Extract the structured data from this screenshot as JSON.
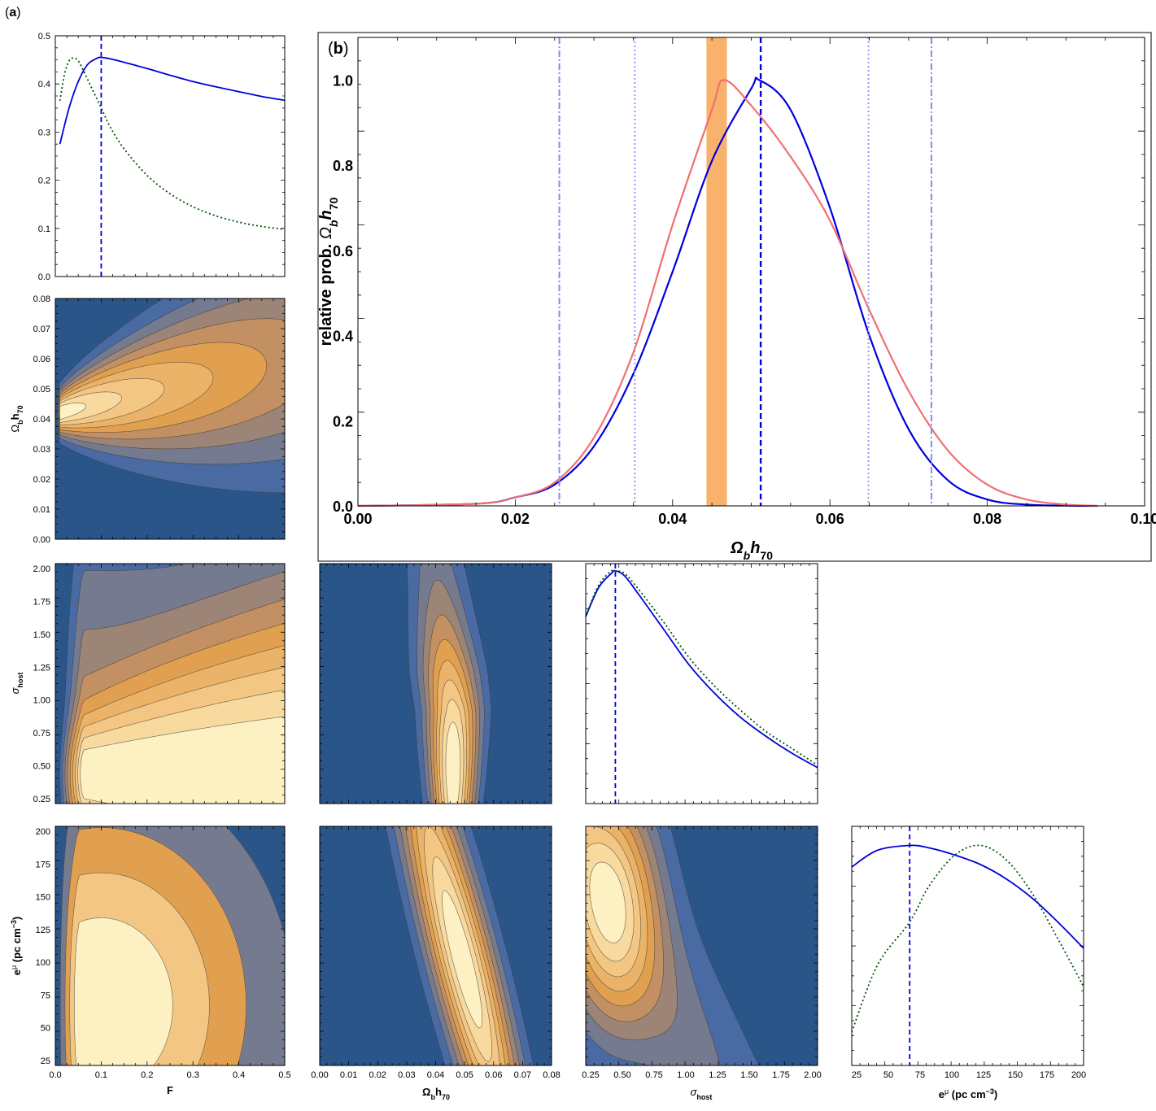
{
  "labels": {
    "panel_a": "(a)",
    "panel_a_letter": "a",
    "panel_b": "(b)",
    "panel_b_letter": "b",
    "F": "F",
    "omega": "Ωbh70",
    "sigma": "σhost",
    "emu": "eμ (pc cm⁻³)",
    "relprob": "relative prob. Ωbh70"
  },
  "colors": {
    "blue": "#0000dd",
    "green": "#005500",
    "red": "#f07070",
    "orange_band": "#f9b26b",
    "contour_levels": [
      "#2a5589",
      "#4a6aa3",
      "#757a8f",
      "#9c8577",
      "#c29063",
      "#e0a050",
      "#ebb368",
      "#f3c783",
      "#f8d99e",
      "#fdf0c2"
    ]
  },
  "chart_data": [
    {
      "id": "F-marginal",
      "type": "line",
      "xlabel": "",
      "ylabel": "",
      "xlim": [
        0,
        0.5
      ],
      "ylim": [
        0,
        0.5
      ],
      "yticks": [
        "0.0",
        "0.1",
        "0.2",
        "0.3",
        "0.4",
        "0.5"
      ],
      "series": [
        {
          "name": "solid blue",
          "style": "solid",
          "x": [
            0.01,
            0.03,
            0.05,
            0.07,
            0.09,
            0.1,
            0.12,
            0.15,
            0.2,
            0.25,
            0.3,
            0.35,
            0.4,
            0.45,
            0.5
          ],
          "y": [
            0.275,
            0.35,
            0.405,
            0.44,
            0.453,
            0.455,
            0.452,
            0.445,
            0.432,
            0.418,
            0.405,
            0.394,
            0.384,
            0.374,
            0.366
          ]
        },
        {
          "name": "dotted green",
          "style": "dotted",
          "x": [
            0.01,
            0.02,
            0.03,
            0.04,
            0.05,
            0.06,
            0.08,
            0.1,
            0.12,
            0.15,
            0.2,
            0.25,
            0.3,
            0.35,
            0.4,
            0.45,
            0.5
          ],
          "y": [
            0.365,
            0.42,
            0.448,
            0.454,
            0.448,
            0.43,
            0.39,
            0.35,
            0.31,
            0.265,
            0.21,
            0.172,
            0.145,
            0.126,
            0.113,
            0.104,
            0.098
          ]
        }
      ],
      "vlines": [
        {
          "x": 0.1,
          "style": "dashed"
        }
      ]
    },
    {
      "id": "omega-marginal",
      "type": "line",
      "title": "(b)",
      "xlabel": "Ωbh70",
      "ylabel": "relative prob. Ωbh70",
      "xlim": [
        0,
        0.1
      ],
      "ylim": [
        0,
        1.1
      ],
      "xticks": [
        "0.00",
        "0.02",
        "0.04",
        "0.06",
        "0.08",
        "0.10"
      ],
      "yticks": [
        "0.0",
        "0.2",
        "0.4",
        "0.6",
        "0.8",
        "1.0"
      ],
      "band": [
        0.0443,
        0.0469
      ],
      "series": [
        {
          "name": "blue",
          "style": "solid",
          "x": [
            0,
            0.015,
            0.02,
            0.025,
            0.03,
            0.035,
            0.04,
            0.045,
            0.05,
            0.051,
            0.055,
            0.06,
            0.065,
            0.07,
            0.075,
            0.08,
            0.085,
            0.09,
            0.094
          ],
          "y": [
            0,
            0.005,
            0.02,
            0.05,
            0.14,
            0.31,
            0.55,
            0.81,
            0.98,
            1.0,
            0.93,
            0.7,
            0.4,
            0.18,
            0.06,
            0.015,
            0.003,
            0.0005,
            0
          ]
        },
        {
          "name": "red",
          "style": "solid",
          "x": [
            0,
            0.015,
            0.02,
            0.025,
            0.03,
            0.035,
            0.04,
            0.045,
            0.0465,
            0.05,
            0.055,
            0.06,
            0.065,
            0.07,
            0.075,
            0.08,
            0.085,
            0.09,
            0.094
          ],
          "y": [
            0,
            0.005,
            0.02,
            0.055,
            0.16,
            0.36,
            0.66,
            0.93,
            1.0,
            0.94,
            0.82,
            0.67,
            0.46,
            0.27,
            0.13,
            0.05,
            0.015,
            0.003,
            0
          ]
        }
      ],
      "vlines": [
        {
          "x": 0.0512,
          "style": "dashed"
        },
        {
          "x": 0.0352,
          "style": "dotted"
        },
        {
          "x": 0.0649,
          "style": "dotted"
        },
        {
          "x": 0.0256,
          "style": "dashdot"
        },
        {
          "x": 0.0729,
          "style": "dashdot"
        }
      ]
    },
    {
      "id": "sigma-marginal",
      "type": "line",
      "xlim": [
        0.2,
        2.0
      ],
      "ylim": [
        0,
        1
      ],
      "series": [
        {
          "name": "solid blue",
          "style": "solid",
          "x": [
            0.2,
            0.3,
            0.4,
            0.43,
            0.5,
            0.6,
            0.8,
            1.0,
            1.2,
            1.4,
            1.6,
            1.8,
            2.0
          ],
          "y": [
            0.78,
            0.9,
            0.96,
            0.97,
            0.95,
            0.88,
            0.73,
            0.58,
            0.46,
            0.36,
            0.28,
            0.21,
            0.15
          ]
        },
        {
          "name": "dotted green",
          "style": "dotted",
          "x": [
            0.2,
            0.3,
            0.4,
            0.43,
            0.5,
            0.6,
            0.8,
            1.0,
            1.2,
            1.4,
            1.6,
            1.8,
            2.0
          ],
          "y": [
            0.78,
            0.91,
            0.97,
            0.97,
            0.96,
            0.9,
            0.76,
            0.61,
            0.49,
            0.39,
            0.3,
            0.23,
            0.16
          ]
        }
      ],
      "vlines": [
        {
          "x": 0.43,
          "style": "dashed"
        }
      ]
    },
    {
      "id": "emu-marginal",
      "type": "line",
      "xlabel": "eμ (pc cm⁻³)",
      "xlim": [
        20,
        200
      ],
      "ylim": [
        0,
        1
      ],
      "xticks": [
        "25",
        "50",
        "75",
        "100",
        "125",
        "150",
        "175",
        "200"
      ],
      "series": [
        {
          "name": "solid blue",
          "style": "solid",
          "x": [
            20,
            40,
            65,
            80,
            100,
            120,
            140,
            160,
            180,
            200
          ],
          "y": [
            0.83,
            0.9,
            0.92,
            0.91,
            0.88,
            0.84,
            0.78,
            0.7,
            0.6,
            0.49
          ]
        },
        {
          "name": "dotted green",
          "style": "dotted",
          "x": [
            20,
            40,
            65,
            80,
            100,
            120,
            140,
            160,
            180,
            200
          ],
          "y": [
            0.14,
            0.42,
            0.6,
            0.75,
            0.88,
            0.92,
            0.86,
            0.72,
            0.53,
            0.33
          ]
        }
      ],
      "vlines": [
        {
          "x": 65,
          "style": "dashed"
        }
      ]
    },
    {
      "id": "F-vs-omega",
      "type": "heatmap",
      "xlim": [
        0,
        0.5
      ],
      "ylim": [
        0,
        0.08
      ],
      "ylabel": "Ωbh70",
      "yticks": [
        "0.00",
        "0.01",
        "0.02",
        "0.03",
        "0.04",
        "0.05",
        "0.06",
        "0.07",
        "0.08"
      ],
      "peak": {
        "x": 0.02,
        "y": 0.047
      },
      "contour_levels": 10
    },
    {
      "id": "F-vs-sigma",
      "type": "heatmap",
      "xlim": [
        0,
        0.5
      ],
      "ylim": [
        0.2,
        2.0
      ],
      "ylabel": "σhost",
      "yticks": [
        "0.25",
        "0.50",
        "0.75",
        "1.00",
        "1.25",
        "1.50",
        "1.75",
        "2.00"
      ],
      "peak": {
        "x": 0.4,
        "y": 0.4
      },
      "contour_levels": 10
    },
    {
      "id": "omega-vs-sigma",
      "type": "heatmap",
      "xlim": [
        0,
        0.08
      ],
      "ylim": [
        0.2,
        2.0
      ],
      "peak": {
        "x": 0.046,
        "y": 0.45
      },
      "contour_levels": 10
    },
    {
      "id": "F-vs-emu",
      "type": "heatmap",
      "xlim": [
        0,
        0.5
      ],
      "ylim": [
        20,
        200
      ],
      "xlabel": "F",
      "ylabel": "eμ (pc cm⁻³)",
      "xticks": [
        "0.0",
        "0.1",
        "0.2",
        "0.3",
        "0.4",
        "0.5"
      ],
      "yticks": [
        "25",
        "50",
        "75",
        "100",
        "125",
        "150",
        "175",
        "200"
      ],
      "peak": {
        "x": 0.1,
        "y": 65
      },
      "contour_levels": 5
    },
    {
      "id": "omega-vs-emu",
      "type": "heatmap",
      "xlim": [
        0,
        0.08
      ],
      "ylim": [
        20,
        200
      ],
      "xlabel": "Ωbh70",
      "xticks": [
        "0.00",
        "0.01",
        "0.02",
        "0.03",
        "0.04",
        "0.05",
        "0.06",
        "0.07",
        "0.08"
      ],
      "peak": {
        "x": 0.05,
        "y": 100
      },
      "contour_levels": 10
    },
    {
      "id": "sigma-vs-emu",
      "type": "heatmap",
      "xlim": [
        0.2,
        2.0
      ],
      "ylim": [
        20,
        200
      ],
      "xlabel": "σhost",
      "xticks": [
        "0.25",
        "0.50",
        "0.75",
        "1.00",
        "1.25",
        "1.50",
        "1.75",
        "2.00"
      ],
      "peak": {
        "x": 0.4,
        "y": 140
      },
      "contour_levels": 10
    }
  ]
}
